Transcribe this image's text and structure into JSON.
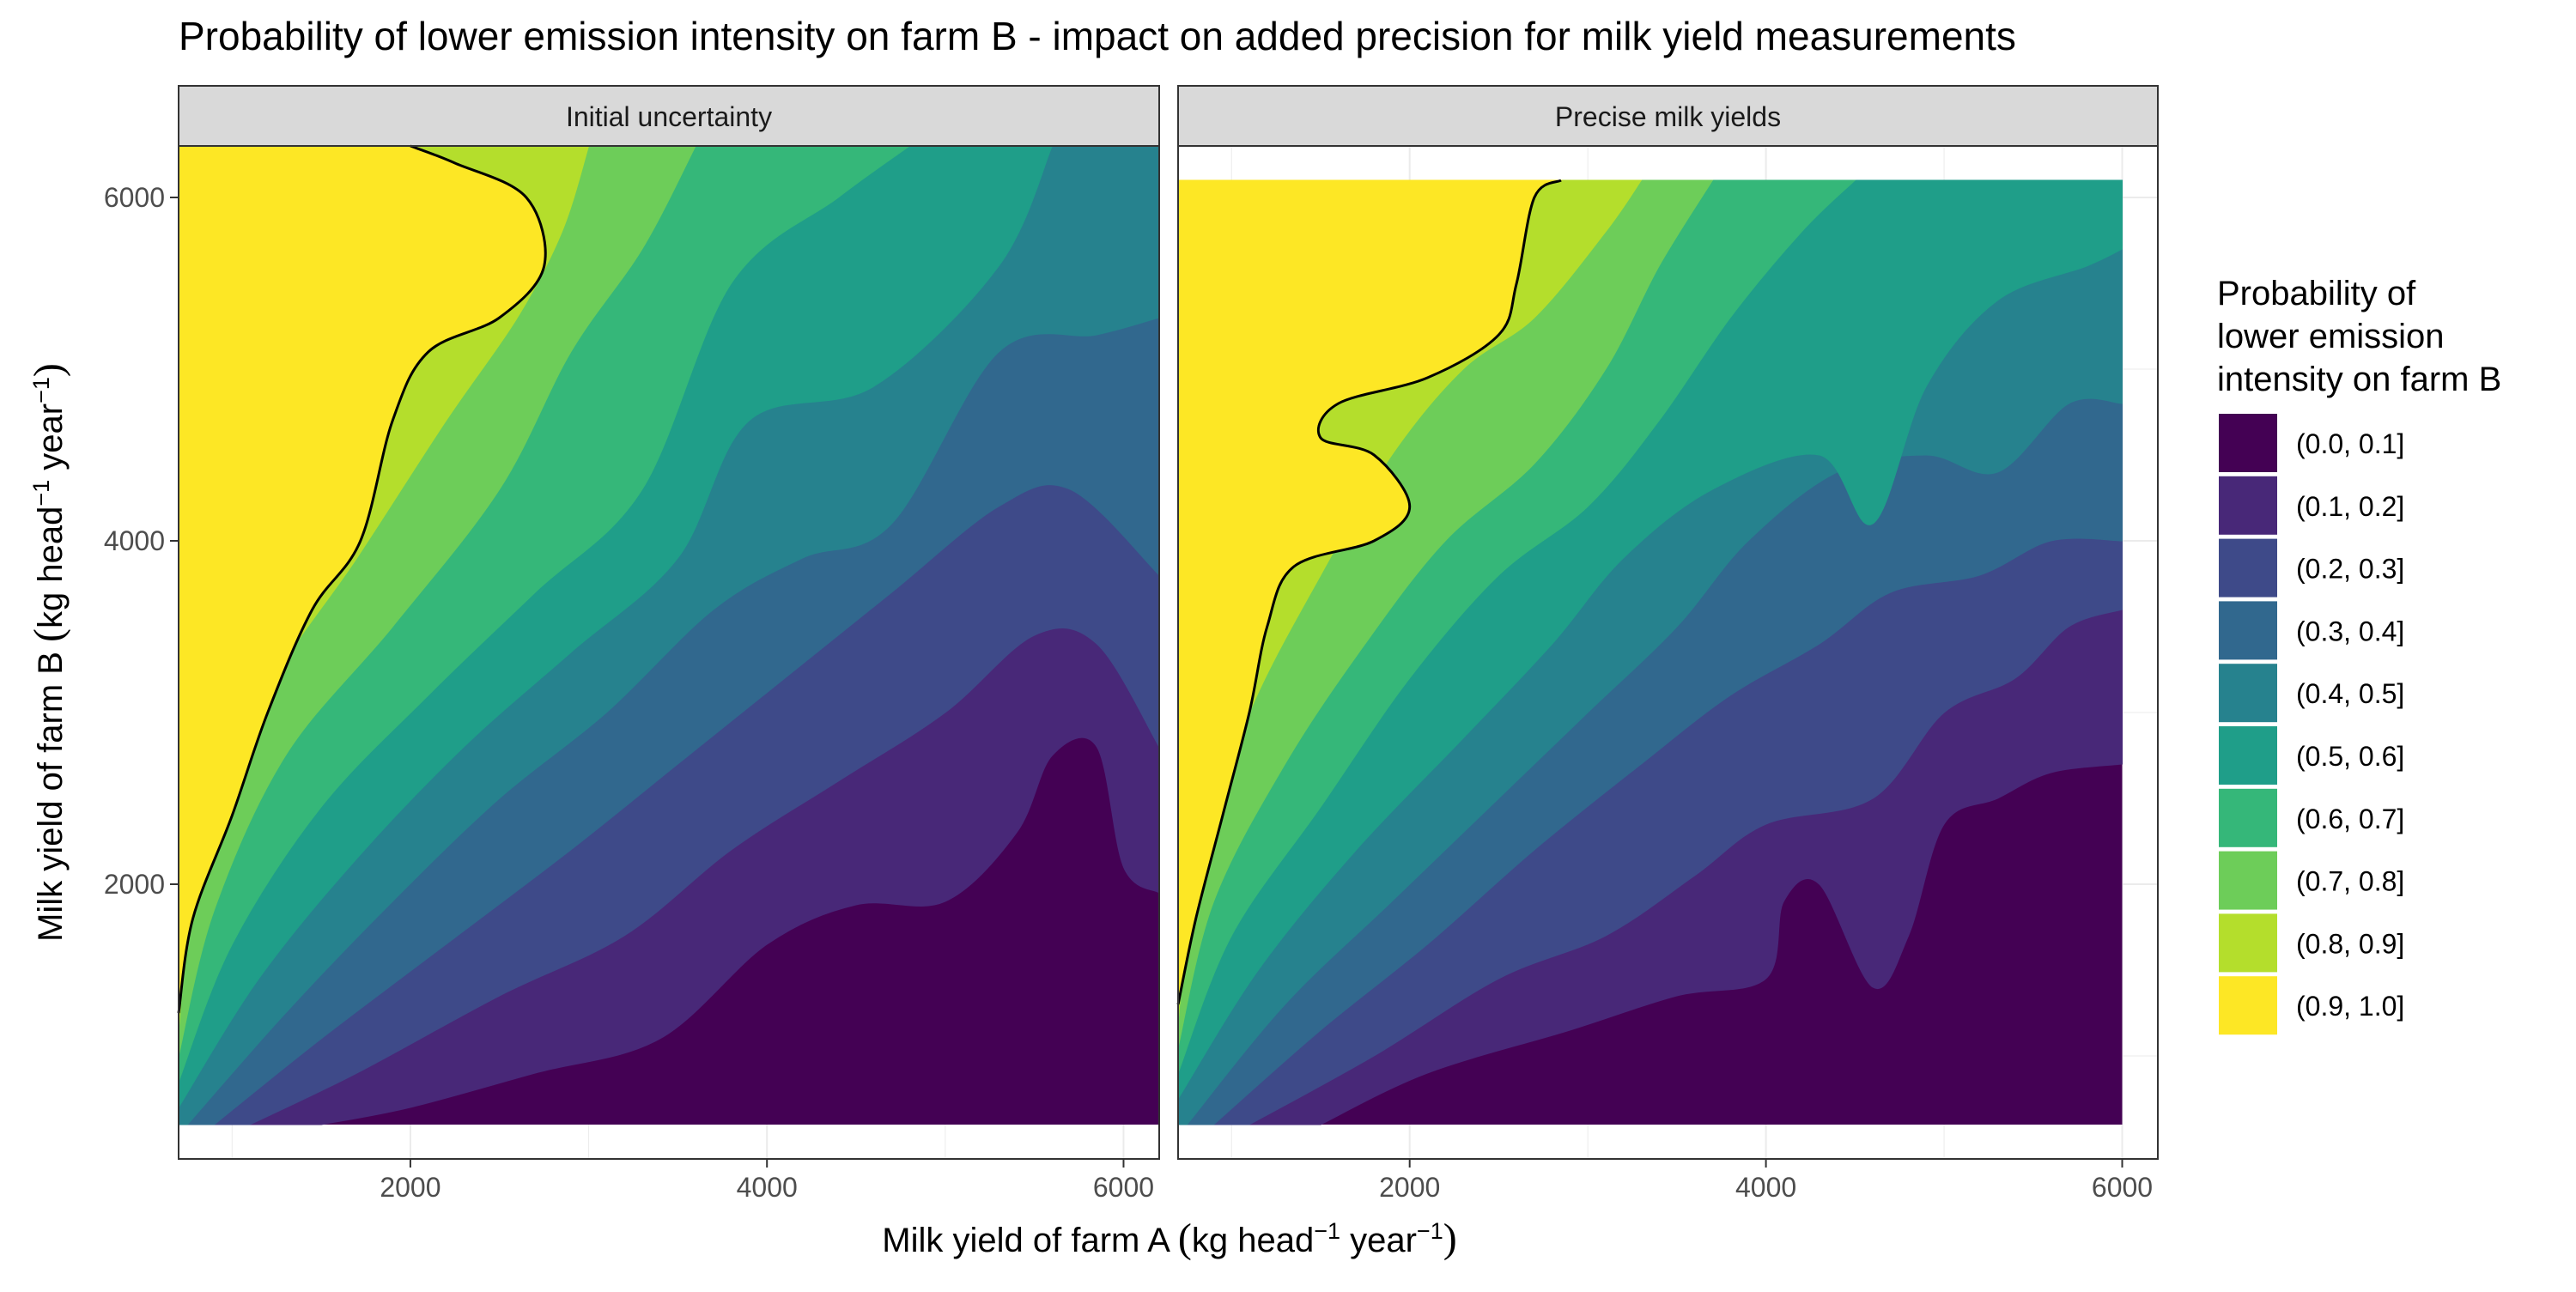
{
  "chart_data": {
    "type": "heatmap",
    "title": "Probability of lower emission intensity on farm B - impact on added precision for milk yield measurements",
    "xlabel": {
      "main": "Milk yield of farm A ",
      "paren_open": "(",
      "unit": "kg head",
      "exp1": "−1",
      "unit2": " year",
      "exp2": "−1",
      "paren_close": ")"
    },
    "ylabel": {
      "main": "Milk yield of farm B ",
      "paren_open": "(",
      "unit": "kg head",
      "exp1": "−1",
      "unit2": " year",
      "exp2": "−1",
      "paren_close": ")"
    },
    "x_ticks": [
      "2000",
      "4000",
      "6000"
    ],
    "y_ticks": [
      "2000",
      "4000",
      "6000"
    ],
    "xlim": [
      700,
      6200
    ],
    "ylim": [
      400,
      6300
    ],
    "grid": true,
    "legend_position": "right",
    "legend": {
      "title_lines": [
        "Probability of",
        "lower emission",
        "intensity on farm B"
      ],
      "items": [
        {
          "label": "(0.0, 0.1]",
          "color": "#440154"
        },
        {
          "label": "(0.1, 0.2]",
          "color": "#482878"
        },
        {
          "label": "(0.2, 0.3]",
          "color": "#3E4A89"
        },
        {
          "label": "(0.3, 0.4]",
          "color": "#31688E"
        },
        {
          "label": "(0.4, 0.5]",
          "color": "#26828E"
        },
        {
          "label": "(0.5, 0.6]",
          "color": "#1F9E89"
        },
        {
          "label": "(0.6, 0.7]",
          "color": "#35B779"
        },
        {
          "label": "(0.7, 0.8]",
          "color": "#6DCD59"
        },
        {
          "label": "(0.8, 0.9]",
          "color": "#B4DE2C"
        },
        {
          "label": "(0.9, 1.0]",
          "color": "#FDE725"
        }
      ]
    },
    "panels": [
      {
        "strip": "Initial uncertainty",
        "x_range": [
          700,
          6200
        ],
        "y_range": [
          600,
          6300
        ],
        "boundaries": [
          {
            "level": 0.1,
            "points": [
              [
                1500,
                600
              ],
              [
                2000,
                700
              ],
              [
                2700,
                900
              ],
              [
                3400,
                1100
              ],
              [
                4000,
                1650
              ],
              [
                4500,
                1880
              ],
              [
                5000,
                1900
              ],
              [
                5400,
                2300
              ],
              [
                5600,
                2750
              ],
              [
                5850,
                2800
              ],
              [
                6000,
                2100
              ],
              [
                6200,
                1950
              ]
            ]
          },
          {
            "level": 0.2,
            "points": [
              [
                1100,
                600
              ],
              [
                1700,
                900
              ],
              [
                2500,
                1350
              ],
              [
                3200,
                1700
              ],
              [
                3800,
                2200
              ],
              [
                4400,
                2600
              ],
              [
                5000,
                3000
              ],
              [
                5500,
                3450
              ],
              [
                5850,
                3400
              ],
              [
                6200,
                2800
              ]
            ]
          },
          {
            "level": 0.3,
            "points": [
              [
                900,
                600
              ],
              [
                1500,
                1100
              ],
              [
                2200,
                1650
              ],
              [
                2900,
                2200
              ],
              [
                3500,
                2700
              ],
              [
                4100,
                3200
              ],
              [
                4700,
                3700
              ],
              [
                5300,
                4200
              ],
              [
                5700,
                4300
              ],
              [
                6200,
                3800
              ]
            ]
          },
          {
            "level": 0.4,
            "points": [
              [
                750,
                600
              ],
              [
                1300,
                1250
              ],
              [
                1900,
                1900
              ],
              [
                2500,
                2500
              ],
              [
                3100,
                3000
              ],
              [
                3700,
                3600
              ],
              [
                4200,
                3900
              ],
              [
                4700,
                4100
              ],
              [
                5300,
                5100
              ],
              [
                5850,
                5200
              ],
              [
                6200,
                5300
              ]
            ]
          },
          {
            "level": 0.5,
            "points": [
              [
                700,
                700
              ],
              [
                1150,
                1450
              ],
              [
                1700,
                2150
              ],
              [
                2300,
                2800
              ],
              [
                2900,
                3350
              ],
              [
                3500,
                3900
              ],
              [
                3900,
                4700
              ],
              [
                4600,
                4900
              ],
              [
                5300,
                5600
              ],
              [
                5600,
                6300
              ]
            ]
          },
          {
            "level": 0.6,
            "points": [
              [
                700,
                850
              ],
              [
                1000,
                1650
              ],
              [
                1500,
                2450
              ],
              [
                2100,
                3100
              ],
              [
                2700,
                3700
              ],
              [
                3300,
                4300
              ],
              [
                3800,
                5500
              ],
              [
                4400,
                6000
              ],
              [
                4800,
                6300
              ]
            ]
          },
          {
            "level": 0.7,
            "points": [
              [
                700,
                1000
              ],
              [
                900,
                1850
              ],
              [
                1300,
                2750
              ],
              [
                1900,
                3500
              ],
              [
                2500,
                4300
              ],
              [
                2900,
                5100
              ],
              [
                3300,
                5700
              ],
              [
                3600,
                6300
              ]
            ]
          },
          {
            "level": 0.8,
            "points": [
              [
                700,
                1150
              ],
              [
                800,
                2050
              ],
              [
                1150,
                3050
              ],
              [
                1700,
                3900
              ],
              [
                2200,
                4700
              ],
              [
                2600,
                5300
              ],
              [
                2850,
                5800
              ],
              [
                3000,
                6300
              ]
            ]
          },
          {
            "level": 0.9,
            "points": [
              [
                700,
                1250
              ],
              [
                780,
                1800
              ],
              [
                1000,
                2400
              ],
              [
                1200,
                3000
              ],
              [
                1450,
                3600
              ],
              [
                1720,
                4000
              ],
              [
                1900,
                4700
              ],
              [
                2100,
                5100
              ],
              [
                2500,
                5300
              ],
              [
                2750,
                5600
              ],
              [
                2650,
                6000
              ],
              [
                2250,
                6200
              ],
              [
                2000,
                6300
              ]
            ]
          }
        ]
      },
      {
        "strip": "Precise milk yields",
        "x_range": [
          700,
          6000
        ],
        "y_range": [
          600,
          6100
        ],
        "boundaries": [
          {
            "level": 0.1,
            "points": [
              [
                1500,
                600
              ],
              [
                2100,
                900
              ],
              [
                2900,
                1150
              ],
              [
                3500,
                1350
              ],
              [
                4000,
                1450
              ],
              [
                4100,
                1900
              ],
              [
                4300,
                2000
              ],
              [
                4600,
                1400
              ],
              [
                4800,
                1700
              ],
              [
                5000,
                2350
              ],
              [
                5300,
                2500
              ],
              [
                5600,
                2650
              ],
              [
                6000,
                2700
              ]
            ]
          },
          {
            "level": 0.2,
            "points": [
              [
                1100,
                600
              ],
              [
                1800,
                1000
              ],
              [
                2500,
                1450
              ],
              [
                3100,
                1700
              ],
              [
                3600,
                2050
              ],
              [
                4000,
                2350
              ],
              [
                4600,
                2500
              ],
              [
                5000,
                3000
              ],
              [
                5400,
                3200
              ],
              [
                5700,
                3500
              ],
              [
                6000,
                3600
              ]
            ]
          },
          {
            "level": 0.3,
            "points": [
              [
                900,
                600
              ],
              [
                1500,
                1150
              ],
              [
                2100,
                1650
              ],
              [
                2700,
                2200
              ],
              [
                3300,
                2700
              ],
              [
                3800,
                3100
              ],
              [
                4300,
                3400
              ],
              [
                4700,
                3700
              ],
              [
                5200,
                3800
              ],
              [
                5600,
                4000
              ],
              [
                6000,
                4000
              ]
            ]
          },
          {
            "level": 0.4,
            "points": [
              [
                750,
                600
              ],
              [
                1300,
                1300
              ],
              [
                1900,
                1900
              ],
              [
                2500,
                2500
              ],
              [
                3000,
                3000
              ],
              [
                3500,
                3500
              ],
              [
                3900,
                4000
              ],
              [
                4400,
                4400
              ],
              [
                4900,
                4500
              ],
              [
                5300,
                4400
              ],
              [
                5700,
                4800
              ],
              [
                6000,
                4800
              ]
            ]
          },
          {
            "level": 0.5,
            "points": [
              [
                700,
                750
              ],
              [
                1150,
                1500
              ],
              [
                1700,
                2200
              ],
              [
                2300,
                2850
              ],
              [
                2800,
                3400
              ],
              [
                3200,
                3900
              ],
              [
                3700,
                4300
              ],
              [
                4300,
                4500
              ],
              [
                4600,
                4100
              ],
              [
                4900,
                4900
              ],
              [
                5300,
                5400
              ],
              [
                5800,
                5600
              ],
              [
                6000,
                5700
              ]
            ]
          },
          {
            "level": 0.6,
            "points": [
              [
                700,
                900
              ],
              [
                1000,
                1700
              ],
              [
                1500,
                2450
              ],
              [
                2000,
                3200
              ],
              [
                2500,
                3800
              ],
              [
                3000,
                4200
              ],
              [
                3400,
                4700
              ],
              [
                3800,
                5300
              ],
              [
                4200,
                5800
              ],
              [
                4500,
                6100
              ]
            ]
          },
          {
            "level": 0.7,
            "points": [
              [
                700,
                1050
              ],
              [
                900,
                1900
              ],
              [
                1300,
                2700
              ],
              [
                1750,
                3400
              ],
              [
                2200,
                4000
              ],
              [
                2700,
                4450
              ],
              [
                3100,
                5000
              ],
              [
                3400,
                5600
              ],
              [
                3700,
                6100
              ]
            ]
          },
          {
            "level": 0.8,
            "points": [
              [
                700,
                1200
              ],
              [
                800,
                2100
              ],
              [
                1100,
                3000
              ],
              [
                1500,
                3800
              ],
              [
                1900,
                4500
              ],
              [
                2300,
                5000
              ],
              [
                2700,
                5300
              ],
              [
                3100,
                5800
              ],
              [
                3300,
                6100
              ]
            ]
          },
          {
            "level": 0.9,
            "points": [
              [
                700,
                1300
              ],
              [
                800,
                1800
              ],
              [
                950,
                2400
              ],
              [
                1100,
                3000
              ],
              [
                1200,
                3500
              ],
              [
                1350,
                3850
              ],
              [
                1800,
                4000
              ],
              [
                2000,
                4200
              ],
              [
                1800,
                4500
              ],
              [
                1500,
                4600
              ],
              [
                1600,
                4800
              ],
              [
                2100,
                4950
              ],
              [
                2500,
                5200
              ],
              [
                2600,
                5500
              ],
              [
                2700,
                6000
              ],
              [
                2850,
                6100
              ]
            ]
          }
        ]
      }
    ]
  }
}
